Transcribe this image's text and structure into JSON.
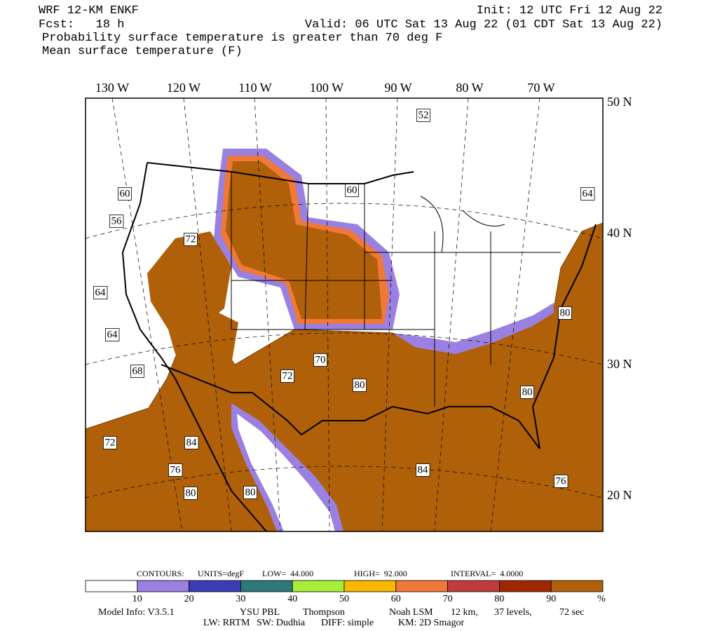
{
  "header": {
    "model": "WRF 12-KM ENKF",
    "init": "Init: 12 UTC Fri 12 Aug 22",
    "fcst": "Fcst:   18 h",
    "valid": "Valid: 06 UTC Sat 13 Aug 22 (01 CDT Sat 13 Aug 22)",
    "field1": "Probability surface temperature is greater than 70 deg F",
    "field2": "Mean surface temperature (F)"
  },
  "lon_labels": [
    "130 W",
    "120 W",
    "110 W",
    "100 W",
    "90 W",
    "80 W",
    "70 W"
  ],
  "lat_labels": [
    "50 N",
    "40 N",
    "30 N",
    "20 N"
  ],
  "contour_labels": [
    "52",
    "60",
    "56",
    "60",
    "64",
    "72",
    "64",
    "64",
    "68",
    "70",
    "72",
    "80",
    "80",
    "80",
    "72",
    "84",
    "76",
    "80",
    "80",
    "84",
    "76"
  ],
  "contours": {
    "title": "CONTOURS:",
    "units": "UNITS=degF",
    "low": "LOW=  44.000",
    "high": "HIGH=  92.000",
    "interval": "INTERVAL=  4.0000"
  },
  "colorbar": {
    "colors": [
      "#ffffff",
      "#9a80e0",
      "#3c3cb4",
      "#2e7a78",
      "#a8f038",
      "#f8b800",
      "#f07838",
      "#c03c3c",
      "#a02800",
      "#b06008"
    ],
    "ticks": [
      "10",
      "20",
      "30",
      "40",
      "50",
      "60",
      "70",
      "80",
      "90"
    ],
    "unit": "%"
  },
  "footer": {
    "model_info": "Model Info: V3.5.1",
    "pbl": "YSU PBL",
    "mp": "Thompson",
    "lsm": "Noah LSM",
    "dx": "12 km,",
    "levels": "37 levels,",
    "dt": "72 sec",
    "lw": "LW: RRTM",
    "sw": "SW: Dudhia",
    "diff": "DIFF: simple",
    "km": "KM: 2D Smagor"
  }
}
